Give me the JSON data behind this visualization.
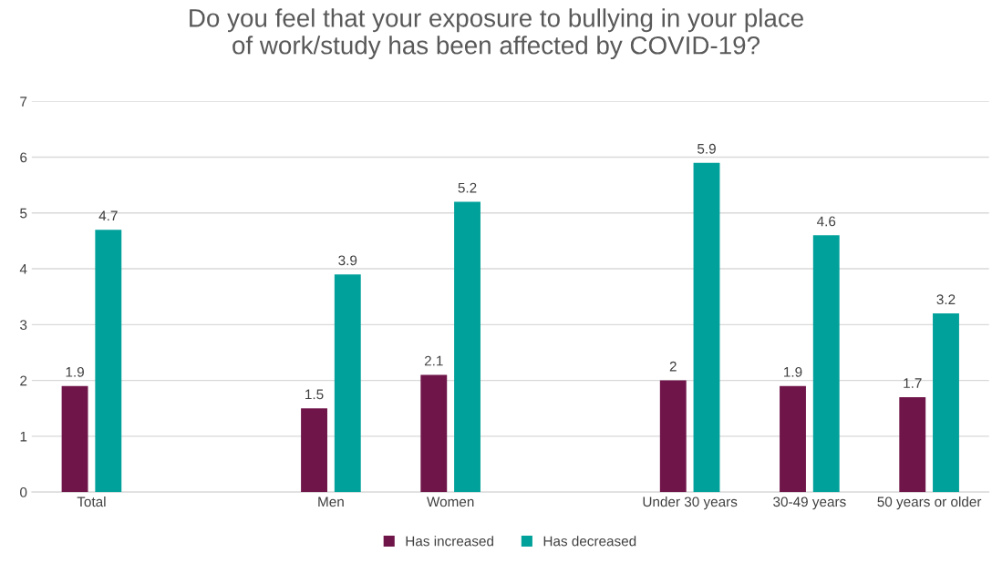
{
  "chart_data": {
    "type": "bar",
    "title": "Do you feel that your exposure to bullying in your place\nof work/study has been affected by COVID-19?",
    "categories": [
      "Total",
      null,
      "Men",
      "Women",
      null,
      "Under 30 years",
      "30-49 years",
      "50 years or older"
    ],
    "series": [
      {
        "name": "Has increased",
        "color": "#6f1549",
        "values": [
          1.9,
          null,
          1.5,
          2.1,
          null,
          2,
          1.9,
          1.7
        ]
      },
      {
        "name": "Has decreased",
        "color": "#00a19a",
        "values": [
          4.7,
          null,
          3.9,
          5.2,
          null,
          5.9,
          4.6,
          3.2
        ]
      }
    ],
    "ylim": [
      0,
      7
    ],
    "yticks": [
      0,
      1,
      2,
      3,
      4,
      5,
      6,
      7
    ],
    "grid": "y",
    "legend": "bottom",
    "data_labels": true
  }
}
